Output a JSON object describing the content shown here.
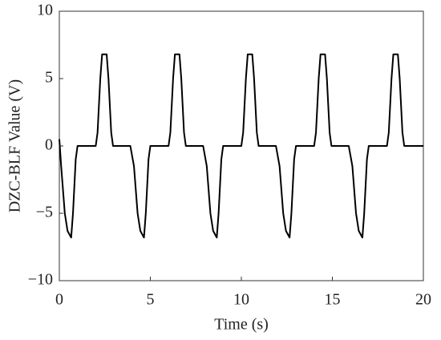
{
  "chart_data": {
    "type": "line",
    "xlabel": "Time (s)",
    "ylabel": "DZC-BLF Value (V)",
    "xlim": [
      0,
      20
    ],
    "ylim": [
      -10,
      10
    ],
    "xticks": [
      0,
      5,
      10,
      15,
      20
    ],
    "yticks": [
      {
        "value": -10,
        "label": "−10"
      },
      {
        "value": -5,
        "label": "−5"
      },
      0,
      5,
      10
    ],
    "x": [
      0,
      0.1,
      0.3,
      0.45,
      0.65,
      0.75,
      0.9,
      1.0,
      2.0,
      2.1,
      2.25,
      2.35,
      2.6,
      2.7,
      2.85,
      2.95,
      3.9,
      4.1,
      4.3,
      4.45,
      4.65,
      4.75,
      4.9,
      5.0,
      6.0,
      6.1,
      6.25,
      6.35,
      6.6,
      6.7,
      6.85,
      6.95,
      7.9,
      8.1,
      8.3,
      8.45,
      8.65,
      8.75,
      8.9,
      9.0,
      10.0,
      10.1,
      10.25,
      10.35,
      10.6,
      10.7,
      10.85,
      10.95,
      11.9,
      12.1,
      12.3,
      12.45,
      12.65,
      12.75,
      12.9,
      13.0,
      14.0,
      14.1,
      14.25,
      14.35,
      14.6,
      14.7,
      14.85,
      14.95,
      15.9,
      16.1,
      16.3,
      16.45,
      16.65,
      16.75,
      16.9,
      17.0,
      18.0,
      18.1,
      18.25,
      18.35,
      18.6,
      18.7,
      18.85,
      18.95,
      20
    ],
    "series": [
      {
        "name": "DZC-BLF",
        "color": "#000000",
        "values": [
          0.5,
          -1.5,
          -5,
          -6.3,
          -6.8,
          -5,
          -1,
          0,
          0,
          1,
          5,
          6.8,
          6.8,
          5,
          1,
          0,
          0,
          -1.5,
          -5,
          -6.3,
          -6.8,
          -5,
          -1,
          0,
          0,
          1,
          5,
          6.8,
          6.8,
          5,
          1,
          0,
          0,
          -1.5,
          -5,
          -6.3,
          -6.8,
          -5,
          -1,
          0,
          0,
          1,
          5,
          6.8,
          6.8,
          5,
          1,
          0,
          0,
          -1.5,
          -5,
          -6.3,
          -6.8,
          -5,
          -1,
          0,
          0,
          1,
          5,
          6.8,
          6.8,
          5,
          1,
          0,
          0,
          -1.5,
          -5,
          -6.3,
          -6.8,
          -5,
          -1,
          0,
          0,
          1,
          5,
          6.8,
          6.8,
          5,
          1,
          0,
          0
        ]
      }
    ]
  }
}
